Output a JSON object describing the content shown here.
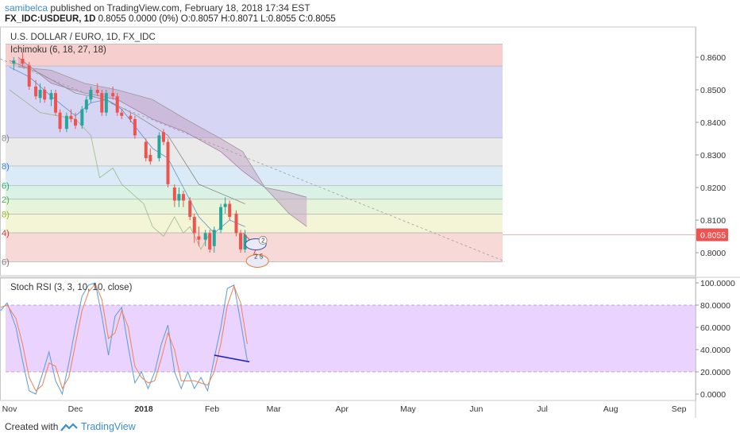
{
  "header": {
    "user": "samibelca",
    "published_text": " published on TradingView.com, February 18, 2018 17:34 EST",
    "symbol": "FX_IDC:USDEUR, 1D",
    "quote": " 0.8055 0.0000 (0%) O:0.8057 H:0.8071 L:0.8055 C:0.8055"
  },
  "footer": {
    "created_with": "Created with",
    "brand": "TradingView"
  },
  "colors": {
    "up": "#26a69a",
    "down": "#ef5350",
    "stoch_k": "#5b9bd5",
    "stoch_d": "#f08050",
    "stoch_band": "#e3c6ff",
    "trendline": "#9e9e9e",
    "divergence": "#1a1ad0",
    "price_tag": "#ef5350"
  },
  "chart_data": [
    {
      "type": "line",
      "title": "U.S. DOLLAR / EURO, 1D, FX_IDC",
      "indicator": "Ichimoku (6, 18, 27, 18)",
      "last_price_label": "0.8055",
      "ylim": [
        0.797,
        0.864
      ],
      "y_ticks": [
        "0.8600",
        "0.8500",
        "0.8400",
        "0.8300",
        "0.8200",
        "0.8100",
        "0.8000"
      ],
      "y_tick_values": [
        0.86,
        0.85,
        0.84,
        0.83,
        0.82,
        0.81,
        0.8
      ],
      "x_ticks": [
        "Nov",
        "Dec",
        "2018",
        "Feb",
        "Mar",
        "Apr",
        "May",
        "Jun",
        "Jul",
        "Aug",
        "Sep"
      ],
      "x_tick_dates": [
        "2017-11-01",
        "2017-12-01",
        "2018-01-01",
        "2018-02-01",
        "2018-03-01",
        "2018-04-01",
        "2018-05-01",
        "2018-06-01",
        "2018-07-01",
        "2018-08-01",
        "2018-09-01"
      ],
      "fib_levels": [
        {
          "label": "",
          "value": 0.864
        },
        {
          "label": "",
          "value": 0.8573
        },
        {
          "label": "8)",
          "value": 0.8352
        },
        {
          "label": "8)",
          "value": 0.8266
        },
        {
          "label": "6)",
          "value": 0.8206
        },
        {
          "label": "2)",
          "value": 0.8164
        },
        {
          "label": "8)",
          "value": 0.8118
        },
        {
          "label": "4)",
          "value": 0.8061
        },
        {
          "label": "6)",
          "value": 0.7972
        }
      ],
      "fib_band_colors": [
        "#f4c6c4",
        "#cfcff2",
        "#e6e6e6",
        "#d3e6f4",
        "#d3f0e0",
        "#e2f2d4",
        "#f2f2d0",
        "#f6d2d0"
      ],
      "trendline": [
        [
          "2017-10-26",
          0.86
        ],
        [
          "2018-06-14",
          0.7973
        ]
      ],
      "candles": [
        [
          "2017-11-03",
          0.858,
          0.86,
          0.856,
          0.859
        ],
        [
          "2017-11-07",
          0.8595,
          0.8615,
          0.857,
          0.858
        ],
        [
          "2017-11-10",
          0.8575,
          0.8585,
          0.85,
          0.851
        ],
        [
          "2017-11-13",
          0.851,
          0.853,
          0.847,
          0.848
        ],
        [
          "2017-11-15",
          0.8475,
          0.852,
          0.846,
          0.85
        ],
        [
          "2017-11-17",
          0.85,
          0.851,
          0.846,
          0.847
        ],
        [
          "2017-11-20",
          0.847,
          0.85,
          0.845,
          0.849
        ],
        [
          "2017-11-22",
          0.849,
          0.85,
          0.842,
          0.843
        ],
        [
          "2017-11-24",
          0.843,
          0.844,
          0.837,
          0.838
        ],
        [
          "2017-11-27",
          0.838,
          0.843,
          0.837,
          0.842
        ],
        [
          "2017-11-29",
          0.842,
          0.844,
          0.84,
          0.841
        ],
        [
          "2017-12-01",
          0.841,
          0.843,
          0.838,
          0.839
        ],
        [
          "2017-12-04",
          0.839,
          0.845,
          0.838,
          0.844
        ],
        [
          "2017-12-06",
          0.844,
          0.848,
          0.843,
          0.847
        ],
        [
          "2017-12-08",
          0.847,
          0.851,
          0.846,
          0.85
        ],
        [
          "2017-12-11",
          0.85,
          0.852,
          0.848,
          0.849
        ],
        [
          "2017-12-13",
          0.849,
          0.85,
          0.842,
          0.843
        ],
        [
          "2017-12-15",
          0.843,
          0.85,
          0.842,
          0.849
        ],
        [
          "2017-12-18",
          0.849,
          0.851,
          0.847,
          0.848
        ],
        [
          "2017-12-20",
          0.848,
          0.849,
          0.842,
          0.843
        ],
        [
          "2017-12-22",
          0.843,
          0.844,
          0.841,
          0.842
        ],
        [
          "2017-12-26",
          0.842,
          0.843,
          0.84,
          0.841
        ],
        [
          "2017-12-28",
          0.841,
          0.842,
          0.835,
          0.836
        ],
        [
          "2018-01-02",
          0.834,
          0.835,
          0.828,
          0.829
        ],
        [
          "2018-01-04",
          0.83,
          0.832,
          0.827,
          0.828
        ],
        [
          "2018-01-08",
          0.829,
          0.837,
          0.828,
          0.836
        ],
        [
          "2018-01-10",
          0.837,
          0.838,
          0.833,
          0.834
        ],
        [
          "2018-01-12",
          0.834,
          0.835,
          0.82,
          0.821
        ],
        [
          "2018-01-15",
          0.82,
          0.821,
          0.814,
          0.816
        ],
        [
          "2018-01-17",
          0.816,
          0.82,
          0.814,
          0.818
        ],
        [
          "2018-01-19",
          0.818,
          0.819,
          0.814,
          0.816
        ],
        [
          "2018-01-22",
          0.816,
          0.817,
          0.81,
          0.811
        ],
        [
          "2018-01-24",
          0.811,
          0.812,
          0.803,
          0.806
        ],
        [
          "2018-01-26",
          0.805,
          0.808,
          0.802,
          0.804
        ],
        [
          "2018-01-29",
          0.804,
          0.807,
          0.802,
          0.806
        ],
        [
          "2018-01-31",
          0.806,
          0.807,
          0.8,
          0.801
        ],
        [
          "2018-02-02",
          0.802,
          0.808,
          0.8,
          0.807
        ],
        [
          "2018-02-05",
          0.807,
          0.815,
          0.806,
          0.814
        ],
        [
          "2018-02-07",
          0.814,
          0.817,
          0.812,
          0.815
        ],
        [
          "2018-02-09",
          0.815,
          0.816,
          0.81,
          0.811
        ],
        [
          "2018-02-12",
          0.812,
          0.813,
          0.805,
          0.806
        ],
        [
          "2018-02-14",
          0.806,
          0.807,
          0.8,
          0.801
        ],
        [
          "2018-02-16",
          0.801,
          0.807,
          0.8,
          0.8055
        ]
      ],
      "tenkan": [
        [
          "2017-11-01",
          0.857
        ],
        [
          "2017-11-10",
          0.854
        ],
        [
          "2017-11-20",
          0.848
        ],
        [
          "2017-12-01",
          0.842
        ],
        [
          "2017-12-08",
          0.846
        ],
        [
          "2017-12-15",
          0.847
        ],
        [
          "2017-12-22",
          0.844
        ],
        [
          "2017-12-29",
          0.838
        ],
        [
          "2018-01-05",
          0.832
        ],
        [
          "2018-01-12",
          0.829
        ],
        [
          "2018-01-19",
          0.82
        ],
        [
          "2018-01-26",
          0.811
        ],
        [
          "2018-02-02",
          0.806
        ],
        [
          "2018-02-09",
          0.81
        ],
        [
          "2018-02-16",
          0.808
        ]
      ],
      "kijun": [
        [
          "2017-11-01",
          0.859
        ],
        [
          "2017-11-15",
          0.855
        ],
        [
          "2017-12-01",
          0.849
        ],
        [
          "2017-12-15",
          0.847
        ],
        [
          "2017-12-29",
          0.842
        ],
        [
          "2018-01-12",
          0.836
        ],
        [
          "2018-01-26",
          0.821
        ],
        [
          "2018-02-09",
          0.817
        ],
        [
          "2018-02-16",
          0.815
        ]
      ],
      "chikou": [
        [
          "2017-11-01",
          0.85
        ],
        [
          "2017-11-15",
          0.843
        ],
        [
          "2017-12-01",
          0.841
        ],
        [
          "2017-12-08",
          0.836
        ],
        [
          "2017-12-12",
          0.823
        ],
        [
          "2017-12-18",
          0.826
        ],
        [
          "2017-12-22",
          0.821
        ],
        [
          "2018-01-01",
          0.815
        ],
        [
          "2018-01-05",
          0.808
        ],
        [
          "2018-01-10",
          0.805
        ],
        [
          "2018-01-15",
          0.811
        ],
        [
          "2018-01-19",
          0.806
        ],
        [
          "2018-01-22",
          0.808
        ],
        [
          "2018-01-27",
          0.801
        ],
        [
          "2018-01-31",
          0.806
        ]
      ],
      "cloud_a": [
        [
          "2017-11-05",
          0.86
        ],
        [
          "2017-11-20",
          0.852
        ],
        [
          "2017-12-05",
          0.849
        ],
        [
          "2017-12-20",
          0.847
        ],
        [
          "2018-01-05",
          0.841
        ],
        [
          "2018-01-20",
          0.837
        ],
        [
          "2018-02-05",
          0.831
        ],
        [
          "2018-02-15",
          0.825
        ],
        [
          "2018-02-25",
          0.82
        ],
        [
          "2018-03-08",
          0.8185
        ],
        [
          "2018-03-16",
          0.817
        ]
      ],
      "cloud_b": [
        [
          "2017-11-05",
          0.857
        ],
        [
          "2017-11-20",
          0.856
        ],
        [
          "2017-12-05",
          0.852
        ],
        [
          "2017-12-20",
          0.85
        ],
        [
          "2018-01-05",
          0.847
        ],
        [
          "2018-01-20",
          0.841
        ],
        [
          "2018-02-05",
          0.835
        ],
        [
          "2018-02-15",
          0.831
        ],
        [
          "2018-02-25",
          0.82
        ],
        [
          "2018-03-08",
          0.812
        ],
        [
          "2018-03-16",
          0.808
        ]
      ]
    },
    {
      "type": "line",
      "indicator": "Stoch RSI (3, 3, 10, 10, close)",
      "ylim": [
        -5,
        102
      ],
      "y_ticks": [
        "100.0000",
        "80.0000",
        "60.0000",
        "40.0000",
        "20.0000",
        "0.0000"
      ],
      "y_tick_values": [
        100,
        80,
        60,
        40,
        20,
        0
      ],
      "band": [
        20,
        80
      ],
      "series": [
        {
          "values": [
            [
              "2017-10-28",
              75
            ],
            [
              "2017-10-31",
              82
            ],
            [
              "2017-11-04",
              60
            ],
            [
              "2017-11-07",
              30
            ],
            [
              "2017-11-10",
              3
            ],
            [
              "2017-11-13",
              0
            ],
            [
              "2017-11-16",
              18
            ],
            [
              "2017-11-19",
              38
            ],
            [
              "2017-11-22",
              12
            ],
            [
              "2017-11-25",
              0
            ],
            [
              "2017-11-28",
              28
            ],
            [
              "2017-12-01",
              60
            ],
            [
              "2017-12-04",
              88
            ],
            [
              "2017-12-07",
              98
            ],
            [
              "2017-12-10",
              100
            ],
            [
              "2017-12-13",
              70
            ],
            [
              "2017-12-16",
              35
            ],
            [
              "2017-12-19",
              70
            ],
            [
              "2017-12-22",
              78
            ],
            [
              "2017-12-25",
              42
            ],
            [
              "2017-12-28",
              10
            ],
            [
              "2017-12-31",
              20
            ],
            [
              "2018-01-03",
              5
            ],
            [
              "2018-01-06",
              20
            ],
            [
              "2018-01-09",
              45
            ],
            [
              "2018-01-12",
              62
            ],
            [
              "2018-01-15",
              20
            ],
            [
              "2018-01-18",
              5
            ],
            [
              "2018-01-21",
              20
            ],
            [
              "2018-01-24",
              5
            ],
            [
              "2018-01-27",
              15
            ],
            [
              "2018-01-30",
              3
            ],
            [
              "2018-02-02",
              32
            ],
            [
              "2018-02-05",
              60
            ],
            [
              "2018-02-08",
              95
            ],
            [
              "2018-02-11",
              98
            ],
            [
              "2018-02-14",
              65
            ],
            [
              "2018-02-17",
              30
            ]
          ]
        },
        {
          "values": [
            [
              "2017-10-28",
              78
            ],
            [
              "2017-10-31",
              80
            ],
            [
              "2017-11-04",
              68
            ],
            [
              "2017-11-07",
              45
            ],
            [
              "2017-11-10",
              15
            ],
            [
              "2017-11-13",
              3
            ],
            [
              "2017-11-16",
              8
            ],
            [
              "2017-11-19",
              28
            ],
            [
              "2017-11-22",
              25
            ],
            [
              "2017-11-25",
              5
            ],
            [
              "2017-11-28",
              15
            ],
            [
              "2017-12-01",
              45
            ],
            [
              "2017-12-04",
              75
            ],
            [
              "2017-12-07",
              92
            ],
            [
              "2017-12-10",
              99
            ],
            [
              "2017-12-13",
              85
            ],
            [
              "2017-12-16",
              50
            ],
            [
              "2017-12-19",
              55
            ],
            [
              "2017-12-22",
              75
            ],
            [
              "2017-12-25",
              60
            ],
            [
              "2017-12-28",
              25
            ],
            [
              "2017-12-31",
              15
            ],
            [
              "2018-01-03",
              10
            ],
            [
              "2018-01-06",
              12
            ],
            [
              "2018-01-09",
              32
            ],
            [
              "2018-01-12",
              55
            ],
            [
              "2018-01-15",
              40
            ],
            [
              "2018-01-18",
              12
            ],
            [
              "2018-01-21",
              12
            ],
            [
              "2018-01-24",
              12
            ],
            [
              "2018-01-27",
              10
            ],
            [
              "2018-01-30",
              8
            ],
            [
              "2018-02-02",
              20
            ],
            [
              "2018-02-05",
              45
            ],
            [
              "2018-02-08",
              80
            ],
            [
              "2018-02-11",
              97
            ],
            [
              "2018-02-14",
              82
            ],
            [
              "2018-02-17",
              45
            ]
          ]
        }
      ],
      "divergence_line": [
        [
          "2018-02-02",
          35
        ],
        [
          "2018-02-18",
          29
        ]
      ]
    }
  ],
  "annotations": {
    "small_badge_num": "2",
    "flag_badge_nums": "2 5"
  }
}
